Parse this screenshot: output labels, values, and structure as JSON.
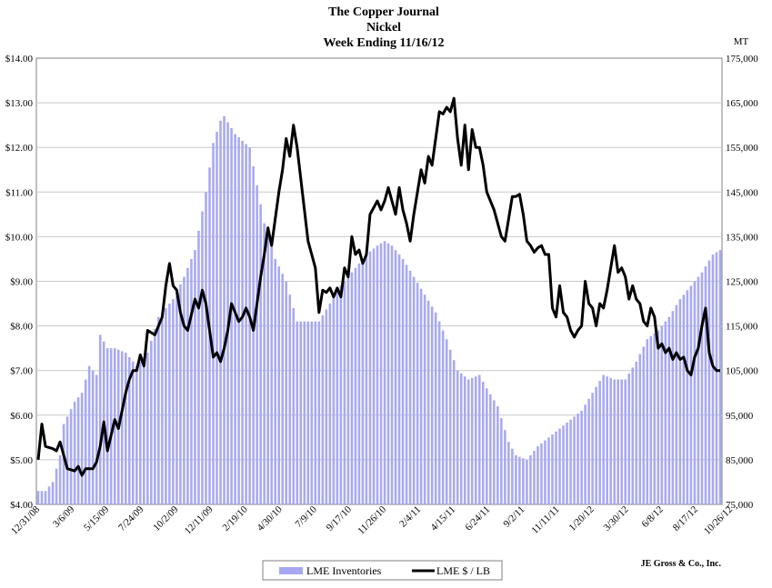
{
  "chart_data": {
    "type": "bar+line",
    "title": "The Copper Journal",
    "subtitle": "Nickel",
    "subtitle2": "Week Ending 11/16/12",
    "y2_unit": "MT",
    "credit": "JE Gross & Co., Inc.",
    "legend": {
      "placement": "bottom-center",
      "bars_label": "LME Inventories",
      "line_label": "LME $ / LB"
    },
    "colors": {
      "bars": "#a8a9f2",
      "line": "#000000"
    },
    "grid": true,
    "y_left": {
      "ylim": [
        4,
        14
      ],
      "tick_labels": [
        "$4.00",
        "$5.00",
        "$6.00",
        "$7.00",
        "$8.00",
        "$9.00",
        "$10.00",
        "$11.00",
        "$12.00",
        "$13.00",
        "$14.00"
      ]
    },
    "y_right": {
      "ylim": [
        75000,
        175000
      ],
      "tick_labels": [
        "75,000",
        "85,000",
        "95,000",
        "105,000",
        "115,000",
        "125,000",
        "135,000",
        "145,000",
        "155,000",
        "165,000",
        "175,000"
      ]
    },
    "x_tick_labels": [
      "12/31/08",
      "3/6/09",
      "5/15/09",
      "7/24/09",
      "10/2/09",
      "12/11/09",
      "2/19/10",
      "4/30/10",
      "7/9/10",
      "9/17/10",
      "11/26/10",
      "2/4/11",
      "4/15/11",
      "6/24/11",
      "9/2/11",
      "11/11/11",
      "1/20/12",
      "3/30/12",
      "6/8/12",
      "8/17/12",
      "10/26/12"
    ],
    "bar_anchors_mt": [
      [
        0,
        78000
      ],
      [
        2,
        78000
      ],
      [
        4,
        80000
      ],
      [
        6,
        86000
      ],
      [
        7,
        93000
      ],
      [
        10,
        98000
      ],
      [
        12,
        100000
      ],
      [
        14,
        106000
      ],
      [
        16,
        104000
      ],
      [
        17,
        113000
      ],
      [
        19,
        110000
      ],
      [
        21,
        110000
      ],
      [
        24,
        109000
      ],
      [
        27,
        106000
      ],
      [
        30,
        109000
      ],
      [
        33,
        117000
      ],
      [
        37,
        121000
      ],
      [
        40,
        126000
      ],
      [
        43,
        132000
      ],
      [
        46,
        145000
      ],
      [
        48,
        156000
      ],
      [
        50,
        161000
      ],
      [
        51,
        162000
      ],
      [
        54,
        158000
      ],
      [
        58,
        155000
      ],
      [
        62,
        138000
      ],
      [
        65,
        130000
      ],
      [
        68,
        125000
      ],
      [
        71,
        116000
      ],
      [
        74,
        116000
      ],
      [
        77,
        116000
      ],
      [
        80,
        120000
      ],
      [
        83,
        124000
      ],
      [
        86,
        127000
      ],
      [
        90,
        131000
      ],
      [
        93,
        133000
      ],
      [
        95,
        134000
      ],
      [
        97,
        133000
      ],
      [
        100,
        130000
      ],
      [
        103,
        126000
      ],
      [
        106,
        122000
      ],
      [
        109,
        118000
      ],
      [
        112,
        112000
      ],
      [
        115,
        105000
      ],
      [
        118,
        103000
      ],
      [
        121,
        104000
      ],
      [
        123,
        101000
      ],
      [
        126,
        97000
      ],
      [
        129,
        89000
      ],
      [
        131,
        86000
      ],
      [
        134,
        85000
      ],
      [
        137,
        88000
      ],
      [
        140,
        90000
      ],
      [
        143,
        92000
      ],
      [
        146,
        94000
      ],
      [
        149,
        96000
      ],
      [
        152,
        100000
      ],
      [
        155,
        104000
      ],
      [
        158,
        103000
      ],
      [
        161,
        103000
      ],
      [
        164,
        107000
      ],
      [
        167,
        112000
      ],
      [
        170,
        114000
      ],
      [
        173,
        117000
      ],
      [
        176,
        121000
      ],
      [
        179,
        124000
      ],
      [
        182,
        127000
      ],
      [
        185,
        131000
      ],
      [
        187,
        132000
      ]
    ],
    "line_anchors_usd": [
      [
        0,
        5.0
      ],
      [
        1,
        5.8
      ],
      [
        2,
        5.3
      ],
      [
        4,
        5.25
      ],
      [
        5,
        5.2
      ],
      [
        6,
        5.4
      ],
      [
        8,
        4.8
      ],
      [
        10,
        4.75
      ],
      [
        11,
        4.85
      ],
      [
        12,
        4.65
      ],
      [
        13,
        4.8
      ],
      [
        14,
        4.8
      ],
      [
        15,
        4.8
      ],
      [
        16,
        4.95
      ],
      [
        17,
        5.3
      ],
      [
        18,
        5.85
      ],
      [
        19,
        5.2
      ],
      [
        21,
        5.9
      ],
      [
        22,
        5.7
      ],
      [
        23,
        6.1
      ],
      [
        24,
        6.5
      ],
      [
        25,
        6.8
      ],
      [
        26,
        7.0
      ],
      [
        27,
        7.0
      ],
      [
        28,
        7.35
      ],
      [
        29,
        7.1
      ],
      [
        30,
        7.9
      ],
      [
        32,
        7.8
      ],
      [
        34,
        8.2
      ],
      [
        35,
        8.9
      ],
      [
        36,
        9.4
      ],
      [
        37,
        8.9
      ],
      [
        38,
        8.8
      ],
      [
        39,
        8.3
      ],
      [
        40,
        8.0
      ],
      [
        41,
        7.9
      ],
      [
        43,
        8.6
      ],
      [
        44,
        8.4
      ],
      [
        45,
        8.8
      ],
      [
        46,
        8.5
      ],
      [
        47,
        7.9
      ],
      [
        48,
        7.3
      ],
      [
        49,
        7.4
      ],
      [
        50,
        7.2
      ],
      [
        51,
        7.5
      ],
      [
        52,
        7.9
      ],
      [
        53,
        8.5
      ],
      [
        54,
        8.3
      ],
      [
        55,
        8.1
      ],
      [
        56,
        8.2
      ],
      [
        57,
        8.4
      ],
      [
        58,
        8.2
      ],
      [
        59,
        7.9
      ],
      [
        60,
        8.5
      ],
      [
        61,
        9.1
      ],
      [
        62,
        9.6
      ],
      [
        63,
        10.2
      ],
      [
        64,
        9.8
      ],
      [
        65,
        10.4
      ],
      [
        66,
        11.0
      ],
      [
        67,
        11.5
      ],
      [
        68,
        12.2
      ],
      [
        69,
        11.8
      ],
      [
        70,
        12.5
      ],
      [
        71,
        12.0
      ],
      [
        72,
        11.3
      ],
      [
        73,
        10.6
      ],
      [
        74,
        9.9
      ],
      [
        75,
        9.6
      ],
      [
        76,
        9.3
      ],
      [
        77,
        8.3
      ],
      [
        78,
        8.8
      ],
      [
        79,
        8.75
      ],
      [
        80,
        8.85
      ],
      [
        81,
        8.65
      ],
      [
        82,
        8.85
      ],
      [
        83,
        8.65
      ],
      [
        84,
        9.3
      ],
      [
        85,
        9.1
      ],
      [
        86,
        10.0
      ],
      [
        87,
        9.6
      ],
      [
        88,
        9.7
      ],
      [
        89,
        9.4
      ],
      [
        90,
        9.6
      ],
      [
        91,
        10.5
      ],
      [
        93,
        10.8
      ],
      [
        94,
        10.6
      ],
      [
        95,
        10.8
      ],
      [
        96,
        11.1
      ],
      [
        97,
        10.8
      ],
      [
        98,
        10.5
      ],
      [
        99,
        11.1
      ],
      [
        100,
        10.6
      ],
      [
        101,
        10.3
      ],
      [
        102,
        9.9
      ],
      [
        103,
        10.5
      ],
      [
        104,
        11.0
      ],
      [
        105,
        11.5
      ],
      [
        106,
        11.2
      ],
      [
        107,
        11.8
      ],
      [
        108,
        11.6
      ],
      [
        109,
        12.2
      ],
      [
        110,
        12.8
      ],
      [
        111,
        12.75
      ],
      [
        112,
        12.9
      ],
      [
        113,
        12.8
      ],
      [
        114,
        13.1
      ],
      [
        115,
        12.2
      ],
      [
        116,
        11.6
      ],
      [
        117,
        12.5
      ],
      [
        118,
        11.5
      ],
      [
        119,
        12.4
      ],
      [
        120,
        12.0
      ],
      [
        121,
        12.0
      ],
      [
        122,
        11.6
      ],
      [
        123,
        11.0
      ],
      [
        124,
        10.8
      ],
      [
        125,
        10.6
      ],
      [
        126,
        10.3
      ],
      [
        127,
        10.0
      ],
      [
        128,
        9.9
      ],
      [
        129,
        10.4
      ],
      [
        130,
        10.9
      ],
      [
        131,
        10.9
      ],
      [
        132,
        10.95
      ],
      [
        133,
        10.5
      ],
      [
        134,
        9.9
      ],
      [
        135,
        9.8
      ],
      [
        136,
        9.65
      ],
      [
        137,
        9.75
      ],
      [
        138,
        9.8
      ],
      [
        139,
        9.6
      ],
      [
        140,
        9.6
      ],
      [
        141,
        8.4
      ],
      [
        142,
        8.2
      ],
      [
        143,
        8.9
      ],
      [
        144,
        8.3
      ],
      [
        145,
        8.2
      ],
      [
        146,
        7.9
      ],
      [
        147,
        7.75
      ],
      [
        148,
        7.9
      ],
      [
        149,
        8.0
      ],
      [
        150,
        9.0
      ],
      [
        151,
        8.5
      ],
      [
        152,
        8.4
      ],
      [
        153,
        8.0
      ],
      [
        154,
        8.5
      ],
      [
        155,
        8.4
      ],
      [
        156,
        8.8
      ],
      [
        157,
        9.3
      ],
      [
        158,
        9.8
      ],
      [
        159,
        9.2
      ],
      [
        160,
        9.3
      ],
      [
        161,
        9.1
      ],
      [
        162,
        8.6
      ],
      [
        163,
        8.9
      ],
      [
        164,
        8.6
      ],
      [
        165,
        8.5
      ],
      [
        166,
        8.1
      ],
      [
        167,
        8.0
      ],
      [
        168,
        8.4
      ],
      [
        169,
        8.2
      ],
      [
        170,
        7.5
      ],
      [
        171,
        7.6
      ],
      [
        172,
        7.4
      ],
      [
        173,
        7.5
      ],
      [
        174,
        7.25
      ],
      [
        175,
        7.4
      ],
      [
        176,
        7.25
      ],
      [
        177,
        7.3
      ],
      [
        178,
        7.0
      ],
      [
        179,
        6.9
      ],
      [
        180,
        7.3
      ],
      [
        181,
        7.5
      ],
      [
        182,
        8.0
      ],
      [
        183,
        8.4
      ],
      [
        184,
        7.4
      ],
      [
        185,
        7.1
      ],
      [
        186,
        7.0
      ],
      [
        187,
        7.0
      ]
    ]
  }
}
